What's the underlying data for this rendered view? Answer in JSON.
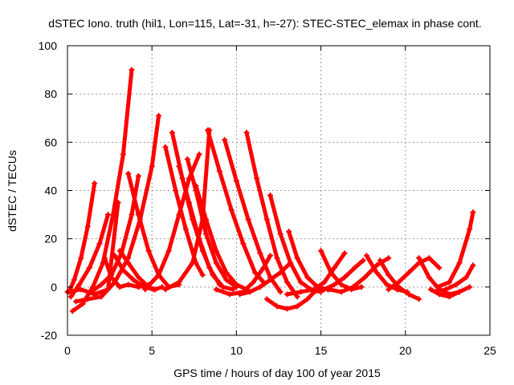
{
  "chart_data": {
    "type": "scatter",
    "title": "dSTEC Iono. truth (hil1, Lon=115, Lat=-31, h=-27): STEC-STEC_elemax in phase cont.",
    "xlabel": "GPS time / hours of day 100 of year 2015",
    "ylabel": "dSTEC  / TECUs",
    "xlim": [
      0,
      25
    ],
    "ylim": [
      -20,
      100
    ],
    "xticks": [
      0,
      5,
      10,
      15,
      20,
      25
    ],
    "yticks": [
      -20,
      0,
      20,
      40,
      60,
      80,
      100
    ],
    "grid": true,
    "marker": "+",
    "colors": {
      "series": "#ff0000",
      "grid": "#999999",
      "axes": "#000000"
    },
    "series": [
      {
        "x": [
          0.1,
          0.4,
          0.8,
          1.2,
          1.6
        ],
        "y": [
          -2,
          3,
          12,
          25,
          43
        ]
      },
      {
        "x": [
          0.3,
          0.9,
          1.5,
          2.1,
          2.7,
          3.3,
          3.8
        ],
        "y": [
          -10,
          -7,
          0,
          10,
          30,
          55,
          90
        ]
      },
      {
        "x": [
          0.0,
          0.8,
          1.6,
          2.4,
          3.0
        ],
        "y": [
          -2,
          -1,
          -3,
          -1,
          35
        ]
      },
      {
        "x": [
          0.5,
          1.2,
          2.0,
          2.8,
          3.6,
          4.3,
          5.0,
          5.4
        ],
        "y": [
          -6,
          -5,
          -4,
          2,
          12,
          28,
          50,
          71
        ]
      },
      {
        "x": [
          0.2,
          0.7,
          1.3,
          1.9,
          2.4
        ],
        "y": [
          -4,
          1,
          8,
          18,
          30
        ]
      },
      {
        "x": [
          1.4,
          2.0,
          2.6,
          3.2,
          3.8,
          4.2
        ],
        "y": [
          -2,
          1,
          5,
          14,
          30,
          46
        ]
      },
      {
        "x": [
          2.2,
          2.6,
          3.1,
          3.6,
          4.2,
          4.8
        ],
        "y": [
          12,
          4,
          0,
          1,
          0,
          1
        ]
      },
      {
        "x": [
          2.8,
          3.3,
          3.9,
          4.5,
          5.1
        ],
        "y": [
          13,
          7,
          3,
          0,
          -1
        ]
      },
      {
        "x": [
          3.1,
          3.6,
          4.2,
          4.8,
          5.2,
          5.6
        ],
        "y": [
          15,
          10,
          4,
          0,
          -1,
          0
        ]
      },
      {
        "x": [
          3.6,
          4.2,
          4.8,
          5.4,
          6.0,
          6.6
        ],
        "y": [
          47,
          30,
          15,
          5,
          0,
          1
        ]
      },
      {
        "x": [
          4.6,
          5.4,
          6.0,
          6.6,
          7.2,
          7.8
        ],
        "y": [
          -1,
          5,
          15,
          30,
          45,
          55
        ]
      },
      {
        "x": [
          5.8,
          6.4,
          7.0,
          7.6,
          8.0
        ],
        "y": [
          58,
          40,
          24,
          10,
          5
        ]
      },
      {
        "x": [
          6.2,
          6.8,
          7.4,
          8.0,
          8.6,
          9.2,
          9.8
        ],
        "y": [
          64,
          45,
          28,
          15,
          5,
          0,
          -1
        ]
      },
      {
        "x": [
          6.6,
          7.2,
          7.8,
          8.4,
          9.0
        ],
        "y": [
          50,
          35,
          20,
          8,
          1
        ]
      },
      {
        "x": [
          7.1,
          7.6,
          8.2,
          8.8,
          9.4,
          10.0
        ],
        "y": [
          53,
          40,
          22,
          10,
          3,
          0
        ]
      },
      {
        "x": [
          7.6,
          8.2,
          8.8,
          9.4,
          10.0,
          10.6
        ],
        "y": [
          42,
          28,
          15,
          6,
          1,
          -1
        ]
      },
      {
        "x": [
          5.8,
          6.6,
          7.4,
          8.0,
          8.4
        ],
        "y": [
          -1,
          2,
          10,
          28,
          65
        ]
      },
      {
        "x": [
          8.3,
          9.0,
          9.7,
          10.4,
          11.1,
          11.6
        ],
        "y": [
          65,
          48,
          32,
          18,
          6,
          2
        ]
      },
      {
        "x": [
          9.3,
          10.0,
          10.7,
          11.4,
          12.0,
          12.6
        ],
        "y": [
          61,
          44,
          28,
          14,
          4,
          -2
        ]
      },
      {
        "x": [
          10.6,
          11.2,
          11.8,
          12.4,
          13.0,
          13.6
        ],
        "y": [
          64,
          45,
          28,
          12,
          2,
          -4
        ]
      },
      {
        "x": [
          8.8,
          9.6,
          10.4,
          11.0,
          11.6,
          12.0
        ],
        "y": [
          -1,
          -3,
          -2,
          2,
          8,
          13
        ]
      },
      {
        "x": [
          10.2,
          10.8,
          11.4,
          12.0,
          12.6,
          13.2
        ],
        "y": [
          -3,
          -2,
          0,
          3,
          6,
          10
        ]
      },
      {
        "x": [
          12.0,
          12.6,
          13.2,
          13.8,
          14.4,
          15.0
        ],
        "y": [
          38,
          22,
          10,
          2,
          -1,
          -2
        ]
      },
      {
        "x": [
          13.1,
          13.6,
          14.2,
          14.8,
          15.4
        ],
        "y": [
          23,
          12,
          4,
          0,
          -1
        ]
      },
      {
        "x": [
          11.8,
          12.4,
          13.0,
          13.6,
          14.2,
          14.6
        ],
        "y": [
          -5,
          -8,
          -9,
          -8,
          -5,
          -2
        ]
      },
      {
        "x": [
          13.0,
          13.8,
          14.6,
          15.2,
          15.8,
          16.4
        ],
        "y": [
          -3,
          -2,
          -1,
          2,
          8,
          14
        ]
      },
      {
        "x": [
          15.0,
          15.6,
          16.2,
          16.8,
          17.4
        ],
        "y": [
          15,
          6,
          1,
          -1,
          0
        ]
      },
      {
        "x": [
          14.6,
          15.2,
          15.8,
          16.4,
          17.0,
          17.5
        ],
        "y": [
          -2,
          -1,
          1,
          4,
          8,
          11
        ]
      },
      {
        "x": [
          15.5,
          16.2,
          16.9,
          17.6,
          18.3,
          19.0
        ],
        "y": [
          -1,
          -2,
          0,
          4,
          9,
          12
        ]
      },
      {
        "x": [
          17.7,
          18.3,
          18.9,
          19.5,
          20.1
        ],
        "y": [
          13,
          6,
          1,
          -1,
          -2
        ]
      },
      {
        "x": [
          18.5,
          19.0,
          19.6,
          20.2,
          20.8
        ],
        "y": [
          11,
          5,
          0,
          -3,
          -5
        ]
      },
      {
        "x": [
          19.0,
          19.6,
          20.2,
          20.8,
          21.4,
          22.0
        ],
        "y": [
          -1,
          2,
          6,
          10,
          12,
          8
        ]
      },
      {
        "x": [
          20.8,
          21.4,
          22.0,
          22.6,
          23.2
        ],
        "y": [
          12,
          4,
          -1,
          -3,
          -2
        ]
      },
      {
        "x": [
          21.5,
          22.0,
          22.6,
          23.2,
          23.8
        ],
        "y": [
          -1,
          -3,
          -4,
          -2,
          0
        ]
      },
      {
        "x": [
          21.8,
          22.4,
          23.0,
          23.6,
          24.0
        ],
        "y": [
          -2,
          -1,
          1,
          4,
          9
        ]
      },
      {
        "x": [
          21.9,
          22.6,
          23.2,
          23.8,
          24.0
        ],
        "y": [
          0,
          2,
          10,
          24,
          31
        ]
      }
    ]
  }
}
